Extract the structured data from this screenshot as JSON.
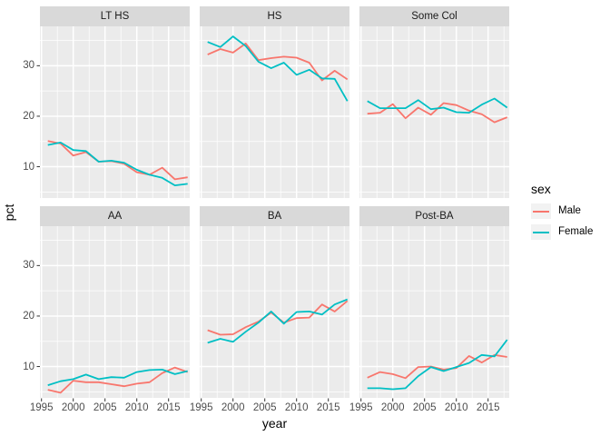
{
  "figure": {
    "background": "#FFFFFF",
    "theme": "ggplot2 grey",
    "panel_bg": "#EBEBEB",
    "strip_bg": "#D9D9D9",
    "grid_color": "#FFFFFF",
    "tick_text_color": "#4D4D4D",
    "tick_mark_color": "#333333"
  },
  "chart_data": {
    "type": "line",
    "title": "",
    "xlabel": "year",
    "ylabel": "pct",
    "facet_layout": "2 rows x 3 cols",
    "x": [
      1996,
      1998,
      2000,
      2002,
      2004,
      2006,
      2008,
      2010,
      2012,
      2014,
      2016,
      2018
    ],
    "x_ticks": [
      1995,
      2000,
      2005,
      2010,
      2015
    ],
    "y_ticks": [
      10,
      20,
      30
    ],
    "y_minor_ticks": [
      5,
      15,
      25,
      35
    ],
    "x_minor_ticks": [
      1997.5,
      2002.5,
      2007.5,
      2012.5,
      2017.5
    ],
    "xlim": [
      1994.76,
      2018.33
    ],
    "ylim": [
      3.8,
      37.8
    ],
    "grid": "white major and minor on grey panel",
    "facets": [
      {
        "label": "LT HS",
        "series": [
          {
            "name": "Male",
            "color": "#F8766D",
            "values": [
              15.1,
              14.6,
              12.2,
              12.9,
              11.0,
              11.1,
              10.6,
              8.9,
              8.4,
              9.8,
              7.5,
              7.9
            ]
          },
          {
            "name": "Female",
            "color": "#00BFC4",
            "values": [
              14.3,
              14.8,
              13.3,
              13.1,
              11.0,
              11.2,
              10.8,
              9.4,
              8.4,
              7.8,
              6.3,
              6.6
            ]
          }
        ]
      },
      {
        "label": "HS",
        "series": [
          {
            "name": "Male",
            "color": "#F8766D",
            "values": [
              32.2,
              33.3,
              32.6,
              34.4,
              31.1,
              31.5,
              31.8,
              31.6,
              30.6,
              27.1,
              29.0,
              27.3
            ]
          },
          {
            "name": "Female",
            "color": "#00BFC4",
            "values": [
              34.7,
              33.7,
              35.8,
              33.9,
              30.8,
              29.5,
              30.6,
              28.2,
              29.2,
              27.5,
              27.4,
              23.0
            ]
          }
        ]
      },
      {
        "label": "Some Col",
        "series": [
          {
            "name": "Male",
            "color": "#F8766D",
            "values": [
              20.5,
              20.7,
              22.4,
              19.6,
              21.7,
              20.3,
              22.6,
              22.2,
              21.1,
              20.4,
              18.8,
              19.8
            ]
          },
          {
            "name": "Female",
            "color": "#00BFC4",
            "values": [
              23.0,
              21.6,
              21.6,
              21.6,
              23.2,
              21.4,
              21.7,
              20.8,
              20.7,
              22.3,
              23.5,
              21.7
            ]
          }
        ]
      },
      {
        "label": "AA",
        "series": [
          {
            "name": "Male",
            "color": "#F8766D",
            "values": [
              5.4,
              4.8,
              7.2,
              6.9,
              6.9,
              6.5,
              6.1,
              6.6,
              6.9,
              8.7,
              9.8,
              8.9
            ]
          },
          {
            "name": "Female",
            "color": "#00BFC4",
            "values": [
              6.3,
              7.1,
              7.5,
              8.4,
              7.5,
              7.9,
              7.8,
              8.9,
              9.3,
              9.4,
              8.5,
              9.1
            ]
          }
        ]
      },
      {
        "label": "BA",
        "series": [
          {
            "name": "Male",
            "color": "#F8766D",
            "values": [
              17.2,
              16.3,
              16.4,
              17.8,
              18.9,
              20.7,
              18.7,
              19.6,
              19.7,
              22.3,
              20.9,
              23.0
            ]
          },
          {
            "name": "Female",
            "color": "#00BFC4",
            "values": [
              14.7,
              15.5,
              14.9,
              16.9,
              18.7,
              20.9,
              18.5,
              20.8,
              20.9,
              20.3,
              22.3,
              23.3
            ]
          }
        ]
      },
      {
        "label": "Post-BA",
        "series": [
          {
            "name": "Male",
            "color": "#F8766D",
            "values": [
              7.8,
              8.9,
              8.5,
              7.7,
              9.9,
              10.0,
              9.4,
              9.7,
              12.1,
              10.8,
              12.3,
              11.9
            ]
          },
          {
            "name": "Female",
            "color": "#00BFC4",
            "values": [
              5.7,
              5.7,
              5.5,
              5.7,
              8.1,
              9.9,
              9.1,
              9.9,
              10.7,
              12.3,
              12.0,
              15.3
            ]
          }
        ]
      }
    ],
    "legend": {
      "title": "sex",
      "position": "right",
      "key_bg": "#F2F2F2",
      "entries": [
        {
          "label": "Male",
          "color": "#F8766D"
        },
        {
          "label": "Female",
          "color": "#00BFC4"
        }
      ]
    }
  }
}
